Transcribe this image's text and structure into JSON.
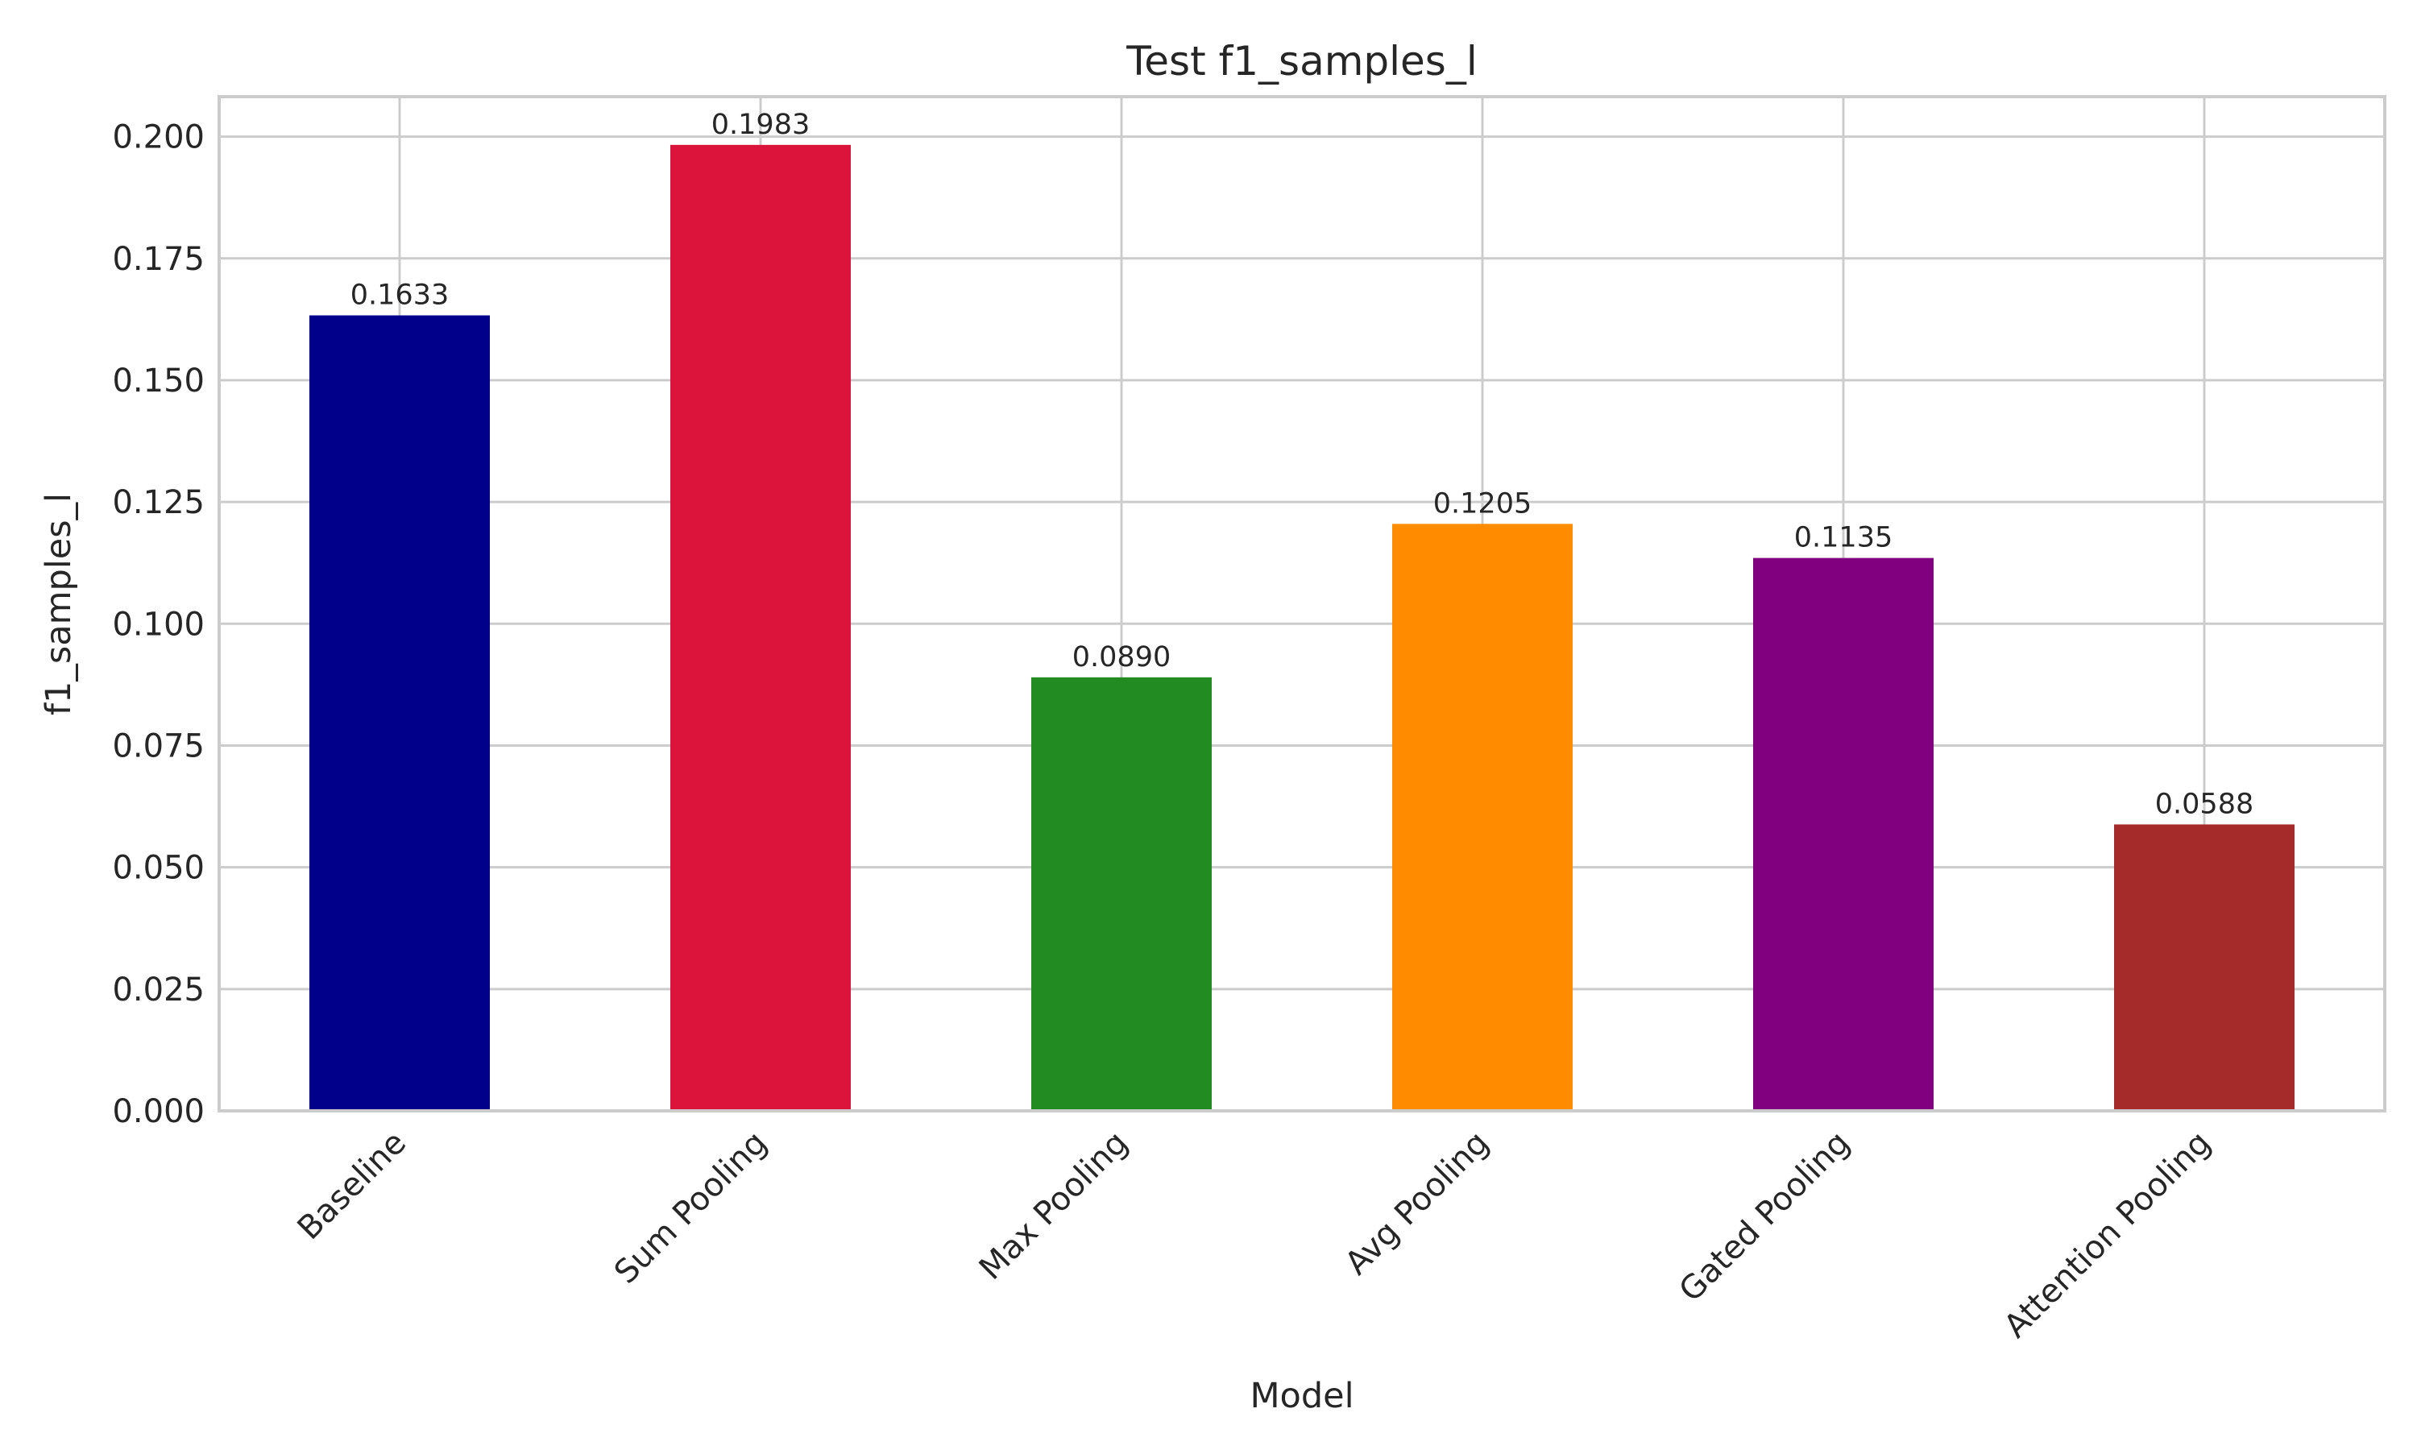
{
  "chart_data": {
    "type": "bar",
    "title": "Test f1_samples_l",
    "xlabel": "Model",
    "ylabel": "f1_samples_l",
    "categories": [
      "Baseline",
      "Sum Pooling",
      "Max Pooling",
      "Avg Pooling",
      "Gated Pooling",
      "Attention Pooling"
    ],
    "values": [
      0.1633,
      0.1983,
      0.089,
      0.1205,
      0.1135,
      0.0588
    ],
    "value_labels": [
      "0.1633",
      "0.1983",
      "0.0890",
      "0.1205",
      "0.1135",
      "0.0588"
    ],
    "colors": [
      "#00008b",
      "#dc143c",
      "#228b22",
      "#ff8c00",
      "#800080",
      "#a52a2a"
    ],
    "yticks": [
      0.0,
      0.025,
      0.05,
      0.075,
      0.1,
      0.125,
      0.15,
      0.175,
      0.2
    ],
    "ytick_labels": [
      "0.000",
      "0.025",
      "0.050",
      "0.075",
      "0.100",
      "0.125",
      "0.150",
      "0.175",
      "0.200"
    ],
    "ylim": [
      0,
      0.2082
    ],
    "grid": true,
    "legend": "none"
  }
}
